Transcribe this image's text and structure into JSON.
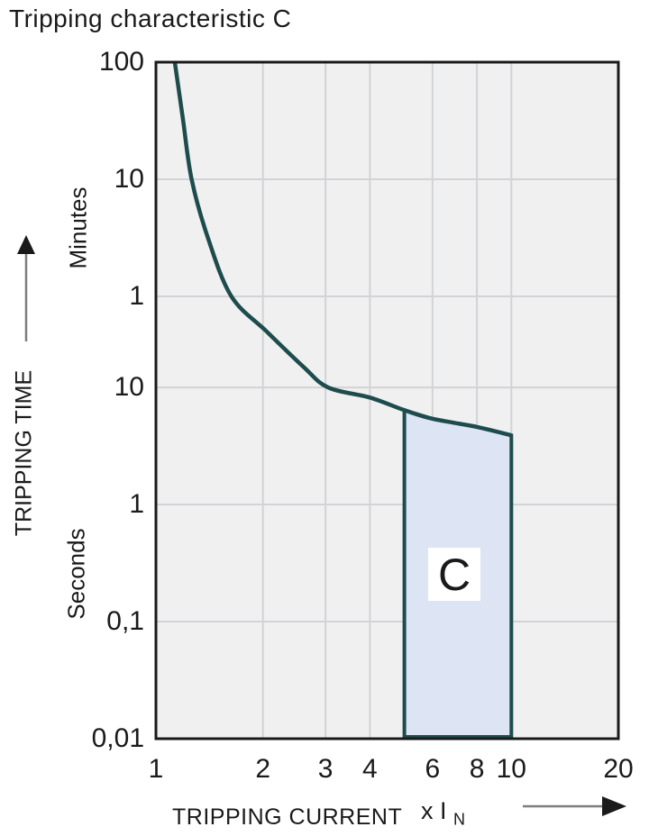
{
  "colors": {
    "text": "#1a1a1a",
    "curve": "#1e4c4d",
    "band_fill": "#dde4f4",
    "plot_bg": "#f0f0f1",
    "grid": "#d2d3d6",
    "border": "#1a1a1a",
    "arrow_line": "#7d7d7d",
    "arrow_head": "#1a1a1a"
  },
  "chart_data": {
    "type": "line",
    "title": "Tripping characteristic C",
    "x_axis": {
      "label": "TRIPPING CURRENT",
      "unit": "x I",
      "unit_subscript": "N",
      "scale": "log",
      "min": 1,
      "max": 20,
      "ticks": [
        {
          "value": 1,
          "label": "1"
        },
        {
          "value": 2,
          "label": "2"
        },
        {
          "value": 3,
          "label": "3"
        },
        {
          "value": 4,
          "label": "4"
        },
        {
          "value": 6,
          "label": "6"
        },
        {
          "value": 8,
          "label": "8"
        },
        {
          "value": 10,
          "label": "10"
        },
        {
          "value": 20,
          "label": "20"
        }
      ],
      "gridlines": [
        2,
        3,
        4,
        6,
        8,
        10
      ]
    },
    "y_axis": {
      "label": "TRIPPING TIME",
      "unit_upper": "Minutes",
      "unit_lower": "Seconds",
      "scale": "log",
      "min_seconds": 0.01,
      "max_seconds": 6000,
      "ticks": [
        {
          "seconds": 6000,
          "label": "100",
          "unit": "minutes"
        },
        {
          "seconds": 600,
          "label": "10",
          "unit": "minutes"
        },
        {
          "seconds": 60,
          "label": "1",
          "unit": "minutes"
        },
        {
          "seconds": 10,
          "label": "10",
          "unit": "seconds"
        },
        {
          "seconds": 1,
          "label": "1",
          "unit": "seconds"
        },
        {
          "seconds": 0.1,
          "label": "0,1",
          "unit": "seconds"
        },
        {
          "seconds": 0.01,
          "label": "0,01",
          "unit": "seconds"
        }
      ],
      "gridline_seconds": [
        600,
        60,
        10,
        1,
        0.1
      ]
    },
    "series": [
      {
        "name": "thermal-tripping-curve",
        "points": [
          [
            1.13,
            6000
          ],
          [
            1.19,
            2000
          ],
          [
            1.26,
            600
          ],
          [
            1.4,
            190
          ],
          [
            1.63,
            60
          ],
          [
            2.05,
            30
          ],
          [
            2.6,
            15
          ],
          [
            3.05,
            10
          ],
          [
            4.0,
            8.2
          ],
          [
            5.0,
            6.4
          ],
          [
            6.0,
            5.4
          ],
          [
            8.0,
            4.6
          ],
          [
            10.0,
            3.9
          ]
        ]
      }
    ],
    "region": {
      "label": "C",
      "x_min": 5,
      "x_max": 10,
      "y_bottom_seconds": 0.01,
      "top_points": [
        [
          5,
          6.4
        ],
        [
          6,
          5.4
        ],
        [
          8,
          4.6
        ],
        [
          10,
          3.9
        ]
      ]
    }
  }
}
